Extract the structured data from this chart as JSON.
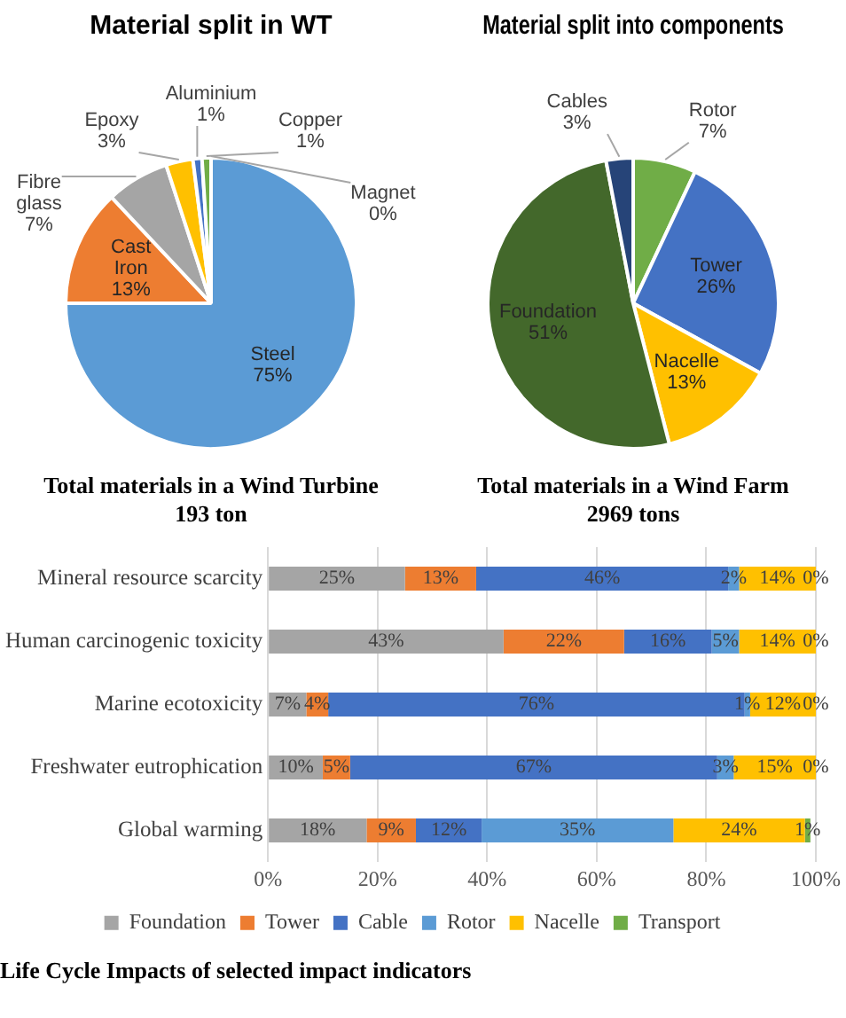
{
  "chart_data": [
    {
      "type": "pie",
      "title": "Material split in WT",
      "categories": [
        "Steel",
        "Cast Iron",
        "Fibre glass",
        "Epoxy",
        "Aluminium",
        "Copper",
        "Magnet"
      ],
      "values": [
        75,
        13,
        7,
        3,
        1,
        1,
        0
      ],
      "colors": [
        "#5b9bd5",
        "#ed7d31",
        "#a5a5a5",
        "#ffc000",
        "#4472c4",
        "#70ad47",
        "#264478"
      ],
      "value_labels": [
        "75%",
        "13%",
        "7%",
        "3%",
        "1%",
        "1%",
        "0%"
      ],
      "annotations": [
        "Total materials in a Wind Turbine 193 ton"
      ]
    },
    {
      "type": "pie",
      "title": "Material split into components",
      "categories": [
        "Rotor",
        "Tower",
        "Nacelle",
        "Foundation",
        "Cables"
      ],
      "values": [
        7,
        26,
        13,
        51,
        3
      ],
      "colors": [
        "#70ad47",
        "#4472c4",
        "#ffc000",
        "#43682b",
        "#264478"
      ],
      "value_labels": [
        "7%",
        "26%",
        "13%",
        "51%",
        "3%"
      ],
      "annotations": [
        "Total materials in a Wind Farm 2969 tons"
      ]
    },
    {
      "type": "bar",
      "orientation": "horizontal",
      "stacked": true,
      "title": "Life Cycle Impacts of selected impact indicators",
      "categories": [
        "Mineral resource scarcity",
        "Human carcinogenic toxicity",
        "Marine ecotoxicity",
        "Freshwater eutrophication",
        "Global warming"
      ],
      "series": [
        {
          "name": "Foundation",
          "color": "#a5a5a5",
          "values": [
            25,
            43,
            7,
            10,
            18
          ],
          "value_labels": [
            "25%",
            "43%",
            "7%",
            "10%",
            "18%"
          ]
        },
        {
          "name": "Tower",
          "color": "#ed7d31",
          "values": [
            13,
            22,
            4,
            5,
            9
          ],
          "value_labels": [
            "13%",
            "22%",
            "4%",
            "5%",
            "9%"
          ]
        },
        {
          "name": "Cable",
          "color": "#4472c4",
          "values": [
            46,
            16,
            76,
            67,
            12
          ],
          "value_labels": [
            "46%",
            "16%",
            "76%",
            "67%",
            "12%"
          ]
        },
        {
          "name": "Rotor",
          "color": "#5b9bd5",
          "values": [
            2,
            5,
            1,
            3,
            35
          ],
          "value_labels": [
            "2%",
            "5%",
            "1%",
            "3%",
            "35%"
          ]
        },
        {
          "name": "Nacelle",
          "color": "#ffc000",
          "values": [
            14,
            14,
            12,
            15,
            24
          ],
          "value_labels": [
            "14%",
            "14%",
            "12%",
            "15%",
            "24%"
          ]
        },
        {
          "name": "Transport",
          "color": "#70ad47",
          "values": [
            0,
            0,
            0,
            0,
            1
          ],
          "value_labels": [
            "0%",
            "0%",
            "0%",
            "0%",
            "1%"
          ]
        }
      ],
      "xlim": [
        0,
        100
      ],
      "xticks": [
        {
          "value": 0,
          "label": "0%"
        },
        {
          "value": 20,
          "label": "20%"
        },
        {
          "value": 40,
          "label": "40%"
        },
        {
          "value": 60,
          "label": "60%"
        },
        {
          "value": 80,
          "label": "80%"
        },
        {
          "value": 100,
          "label": "100%"
        }
      ],
      "grid": "x",
      "legend": "bottom"
    }
  ]
}
